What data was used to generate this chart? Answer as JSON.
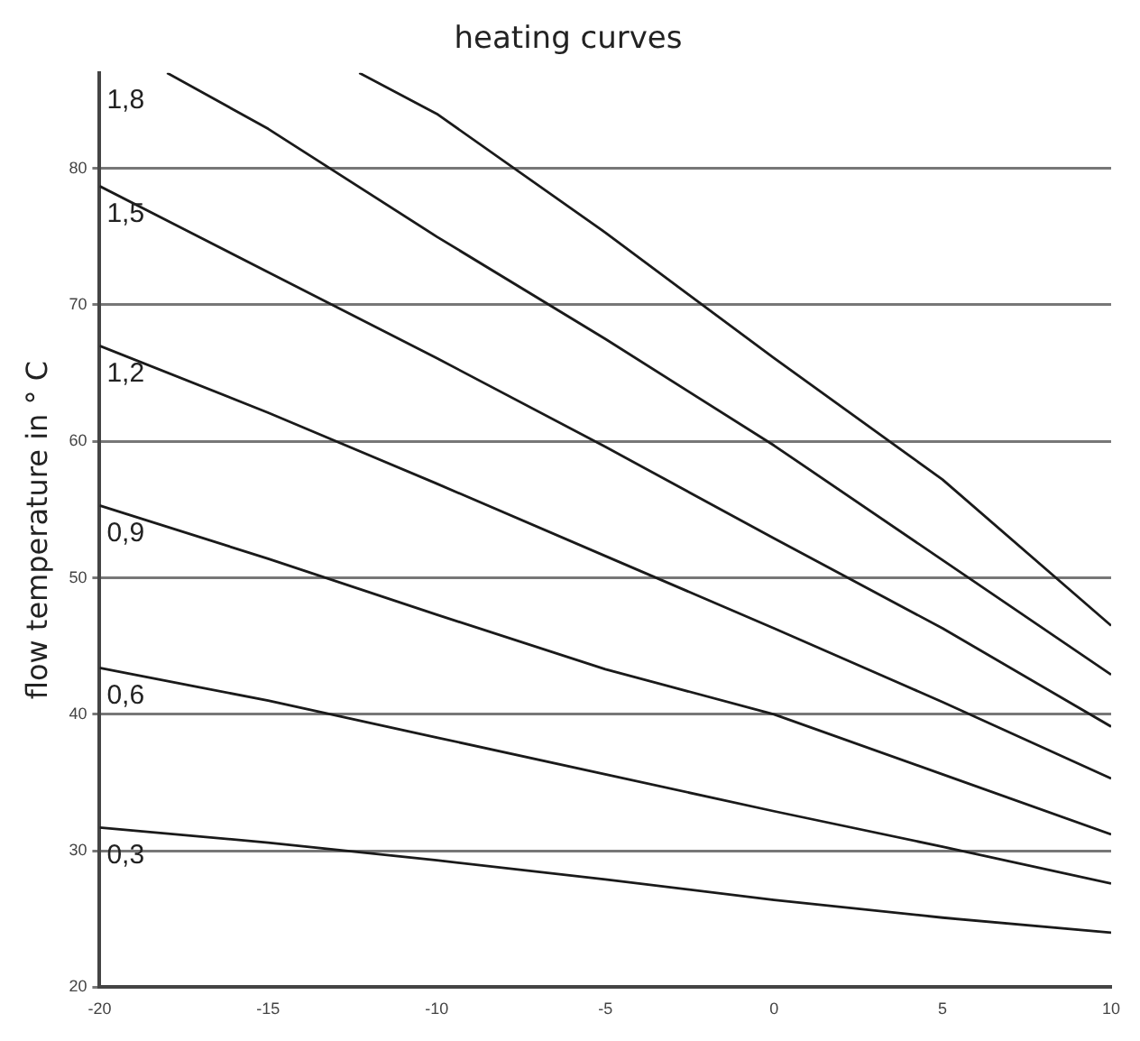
{
  "chart_data": {
    "type": "line",
    "title": "heating curves",
    "ylabel": "flow temperature in ° C",
    "xlim": [
      -20,
      10
    ],
    "xticks": [
      -20,
      -15,
      -10,
      -5,
      0,
      5,
      10
    ],
    "ylim": [
      20,
      87
    ],
    "yticks": [
      20,
      30,
      40,
      50,
      60,
      70,
      80
    ],
    "grid": "y",
    "legend": false,
    "marker": "none",
    "line_style": "solid",
    "series": [
      {
        "color": "#1a1a1a",
        "x": [
          -12.3,
          -10,
          -5,
          0,
          5,
          10
        ],
        "values": [
          87,
          84.0,
          75.3,
          66.1,
          57.2,
          46.5
        ]
      },
      {
        "name": "1,8",
        "color": "#1a1a1a",
        "x": [
          -18,
          -15,
          -10,
          -5,
          0,
          5,
          10
        ],
        "values": [
          87,
          82.9,
          75.0,
          67.5,
          59.7,
          51.3,
          42.9
        ]
      },
      {
        "name": "1,5",
        "color": "#1a1a1a",
        "x": [
          -20,
          -15,
          -10,
          -5,
          0,
          5,
          10
        ],
        "values": [
          78.7,
          72.4,
          66.1,
          59.6,
          52.9,
          46.3,
          39.1
        ]
      },
      {
        "name": "1,2",
        "color": "#1a1a1a",
        "x": [
          -20,
          -15,
          -10,
          -5,
          0,
          5,
          10
        ],
        "values": [
          67,
          62.1,
          56.9,
          51.6,
          46.3,
          40.9,
          35.3
        ]
      },
      {
        "name": "0,9",
        "color": "#1a1a1a",
        "x": [
          -20,
          -15,
          -10,
          -5,
          0,
          5,
          10
        ],
        "values": [
          55.3,
          51.4,
          47.3,
          43.3,
          40,
          35.6,
          31.2
        ]
      },
      {
        "name": "0,6",
        "color": "#1a1a1a",
        "x": [
          -20,
          -15,
          -10,
          -5,
          0,
          5,
          10
        ],
        "values": [
          43.4,
          41.0,
          38.3,
          35.6,
          32.9,
          30.3,
          27.6
        ]
      },
      {
        "name": "0,3",
        "color": "#1a1a1a",
        "x": [
          -20,
          -15,
          -10,
          -5,
          0,
          5,
          10
        ],
        "values": [
          31.7,
          30.6,
          29.3,
          27.9,
          26.4,
          25.1,
          24.0
        ]
      }
    ]
  }
}
